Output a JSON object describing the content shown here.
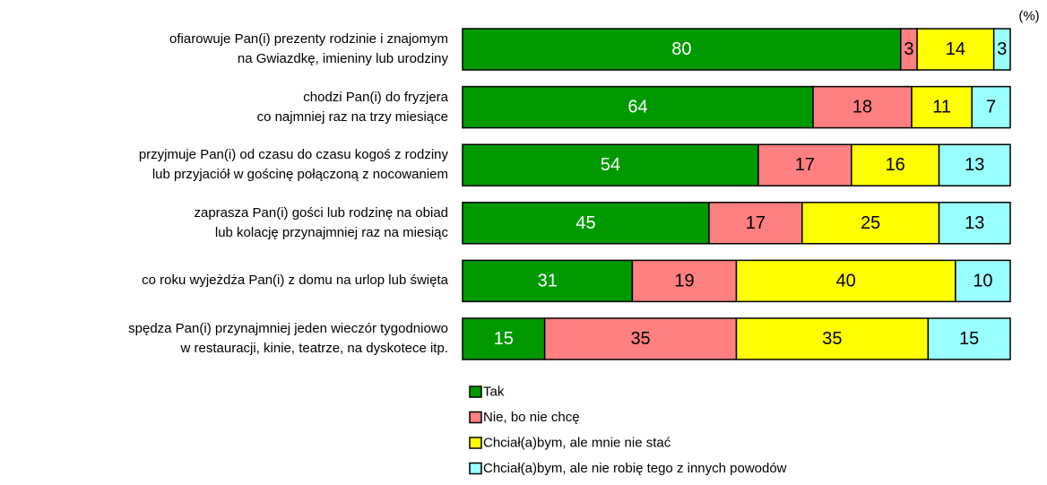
{
  "chart_data": {
    "type": "stacked-bar-horizontal",
    "unit_label": "(%)",
    "categories": [
      "ofiarowuje Pan(i) prezenty rodzinie i znajomym\nna Gwiazdkę, imieniny lub urodziny",
      "chodzi Pan(i) do fryzjera\nco najmniej raz na trzy miesiące",
      "przyjmuje Pan(i) od czasu do czasu kogoś z rodziny\nlub przyjaciół w gościnę połączoną z nocowaniem",
      "zaprasza Pan(i) gości lub rodzinę na obiad\nlub kolację przynajmniej raz na miesiąc",
      "co roku wyjeżdża Pan(i) z domu na urlop lub święta",
      "spędza Pan(i) przynajmniej jeden wieczór tygodniowo\nw restauracji, kinie, teatrze, na dyskotece itp."
    ],
    "series": [
      {
        "name": "Tak",
        "color": "#009900",
        "values": [
          80,
          64,
          54,
          45,
          31,
          15
        ]
      },
      {
        "name": "Nie, bo nie chcę",
        "color": "#ff8080",
        "values": [
          3,
          18,
          17,
          17,
          19,
          35
        ]
      },
      {
        "name": "Chciał(a)bym, ale mnie nie stać",
        "color": "#ffff00",
        "values": [
          14,
          11,
          16,
          25,
          40,
          35
        ]
      },
      {
        "name": "Chciał(a)bym, ale nie robię tego z innych powodów",
        "color": "#99ffff",
        "values": [
          3,
          7,
          13,
          13,
          10,
          15
        ]
      }
    ],
    "xlim": [
      0,
      100
    ]
  }
}
